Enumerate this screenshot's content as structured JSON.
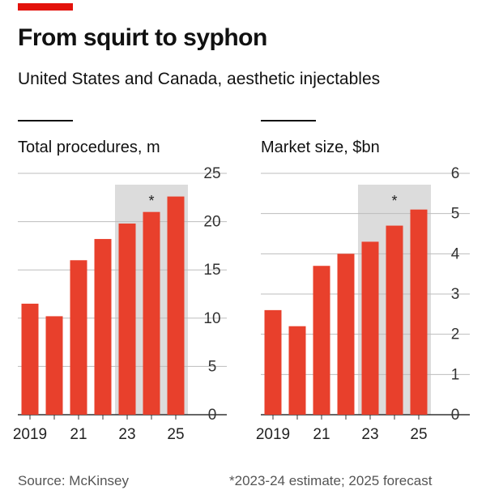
{
  "header": {
    "title": "From squirt to syphon",
    "subtitle": "United States and Canada, aesthetic injectables"
  },
  "footer": {
    "source": "Source: McKinsey",
    "note": "*2023-24 estimate; 2025 forecast"
  },
  "colors": {
    "accent": "#e3120b",
    "bar": "#e8402c",
    "shade": "#dcdcdc",
    "grid": "#bdbdbd"
  },
  "chart_data": [
    {
      "type": "bar",
      "title": "Total procedures, m",
      "categories": [
        "2019",
        "2020",
        "2021",
        "2022",
        "2023",
        "2024",
        "2025"
      ],
      "x_tick_labels": [
        "2019",
        "",
        "21",
        "",
        "23",
        "",
        "25"
      ],
      "values": [
        11.5,
        10.2,
        16.0,
        18.2,
        19.8,
        21.0,
        22.6
      ],
      "ylim": [
        0,
        25
      ],
      "y_ticks": [
        0,
        5,
        10,
        15,
        20,
        25
      ],
      "shaded_categories": [
        "2023",
        "2024",
        "2025"
      ],
      "shade_marker": "*",
      "grid": true,
      "y_axis_position": "right"
    },
    {
      "type": "bar",
      "title": "Market size, $bn",
      "categories": [
        "2019",
        "2020",
        "2021",
        "2022",
        "2023",
        "2024",
        "2025"
      ],
      "x_tick_labels": [
        "2019",
        "",
        "21",
        "",
        "23",
        "",
        "25"
      ],
      "values": [
        2.6,
        2.2,
        3.7,
        4.0,
        4.3,
        4.7,
        5.1
      ],
      "ylim": [
        0,
        6
      ],
      "y_ticks": [
        0,
        1,
        2,
        3,
        4,
        5,
        6
      ],
      "shaded_categories": [
        "2023",
        "2024",
        "2025"
      ],
      "shade_marker": "*",
      "grid": true,
      "y_axis_position": "right"
    }
  ]
}
